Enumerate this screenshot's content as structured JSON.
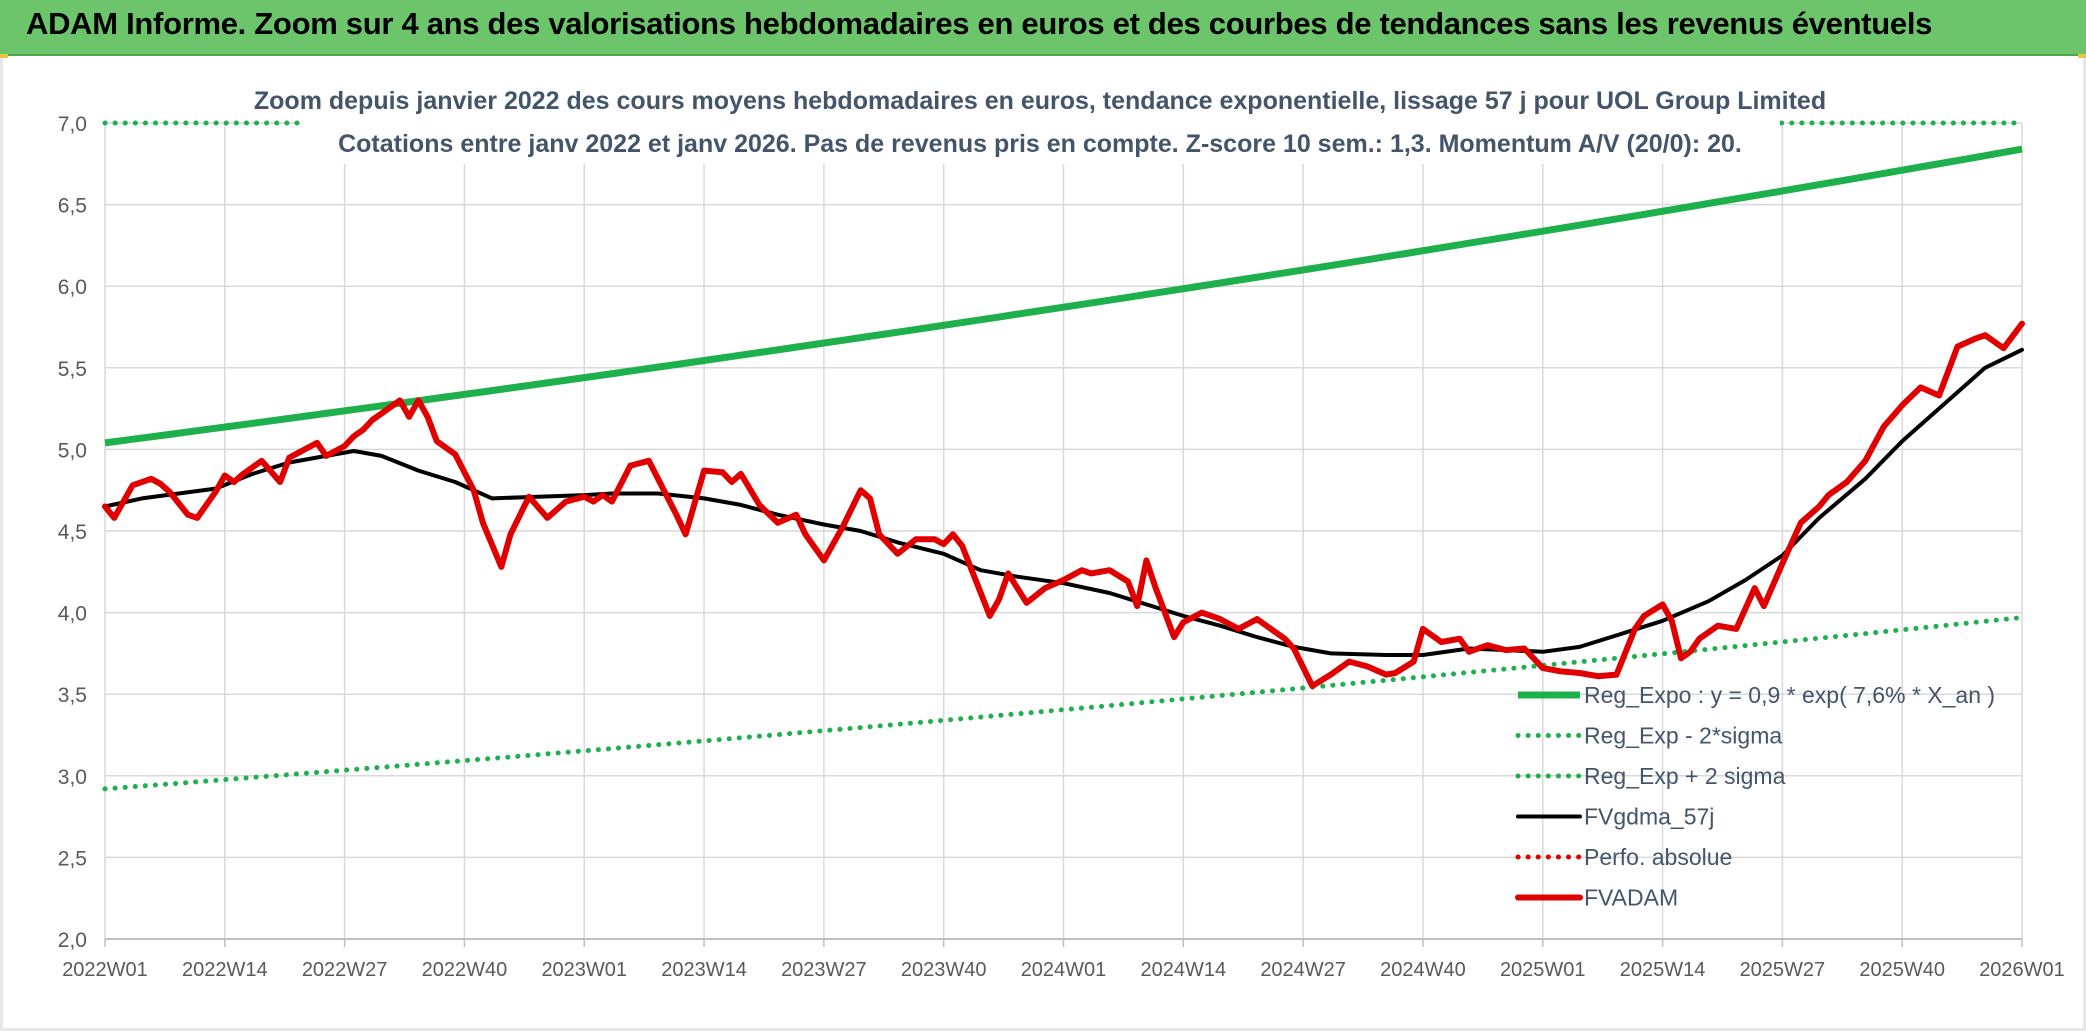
{
  "banner": {
    "title": "ADAM Informe. Zoom sur 4 ans des valorisations hebdomadaires en euros et des courbes de tendances sans les revenus éventuels"
  },
  "chart_data": {
    "type": "line",
    "title": "Zoom depuis janvier 2022 des cours moyens hebdomadaires en euros, tendance exponentielle, lissage 57 j pour UOL Group Limited",
    "subtitle": "Cotations entre janv 2022 et janv 2026. Pas de revenus pris en compte. Z-score 10 sem.: 1,3. Momentum A/V (20/0): 20.",
    "xlabel": "",
    "ylabel": "",
    "x_ticks": [
      "2022W01",
      "2022W14",
      "2022W27",
      "2022W40",
      "2023W01",
      "2023W14",
      "2023W27",
      "2023W40",
      "2024W01",
      "2024W14",
      "2024W27",
      "2024W40",
      "2025W01",
      "2025W14",
      "2025W27",
      "2025W40",
      "2026W01"
    ],
    "y_ticks": [
      "2,0",
      "2,5",
      "3,0",
      "3,5",
      "4,0",
      "4,5",
      "5,0",
      "5,5",
      "6,0",
      "6,5",
      "7,0"
    ],
    "xlim": [
      "2022W01",
      "2026W01"
    ],
    "ylim": [
      2.0,
      7.0
    ],
    "grid": true,
    "legend_position": "bottom-right",
    "legend": [
      {
        "label": "Reg_Expo : y = 0,9 * exp( 7,6% *  X_an )",
        "color": "#1fb04e",
        "style": "solid-thick"
      },
      {
        "label": "Reg_Exp - 2*sigma",
        "color": "#1fb04e",
        "style": "dotted"
      },
      {
        "label": "Reg_Exp + 2 sigma",
        "color": "#1fb04e",
        "style": "dotted"
      },
      {
        "label": "FVgdma_57j",
        "color": "#000000",
        "style": "solid"
      },
      {
        "label": "Perfo. absolue",
        "color": "#e00000",
        "style": "dotted"
      },
      {
        "label": "FVADAM",
        "color": "#e00000",
        "style": "solid-thick"
      }
    ],
    "series": [
      {
        "name": "Reg_Expo : y = 0,9 * exp( 7,6% *  X_an )",
        "color": "#1fb04e",
        "style": "solid-thick",
        "x": [
          "2022W01",
          "2026W01"
        ],
        "values": [
          5.04,
          6.84
        ],
        "curve": "exponential"
      },
      {
        "name": "Reg_Exp - 2*sigma",
        "color": "#1fb04e",
        "style": "dotted",
        "x": [
          "2022W01",
          "2026W01"
        ],
        "values": [
          2.92,
          3.97
        ],
        "curve": "exponential"
      },
      {
        "name": "Reg_Exp + 2 sigma",
        "color": "#1fb04e",
        "style": "dotted",
        "x": [
          "2022W01",
          "2026W01"
        ],
        "values": [
          7.0,
          7.0
        ],
        "curve": "flat"
      },
      {
        "name": "FVgdma_57j",
        "color": "#000000",
        "style": "solid",
        "x": [
          "2022W01",
          "2022W05",
          "2022W09",
          "2022W13",
          "2022W17",
          "2022W21",
          "2022W25",
          "2022W28",
          "2022W31",
          "2022W35",
          "2022W39",
          "2022W43",
          "2022W48",
          "2023W01",
          "2023W04",
          "2023W09",
          "2023W14",
          "2023W18",
          "2023W22",
          "2023W27",
          "2023W31",
          "2023W35",
          "2023W40",
          "2023W44",
          "2023W48",
          "2024W01",
          "2024W06",
          "2024W10",
          "2024W14",
          "2024W18",
          "2024W22",
          "2024W26",
          "2024W30",
          "2024W36",
          "2024W40",
          "2024W45",
          "2024W49",
          "2025W01",
          "2025W05",
          "2025W09",
          "2025W14",
          "2025W19",
          "2025W23",
          "2025W27",
          "2025W31",
          "2025W36",
          "2025W40",
          "2025W45",
          "2025W49",
          "2026W01"
        ],
        "values": [
          4.65,
          4.7,
          4.73,
          4.76,
          4.85,
          4.92,
          4.96,
          4.99,
          4.96,
          4.87,
          4.8,
          4.7,
          4.71,
          4.72,
          4.73,
          4.73,
          4.7,
          4.66,
          4.6,
          4.54,
          4.5,
          4.43,
          4.36,
          4.26,
          4.22,
          4.18,
          4.12,
          4.05,
          3.98,
          3.92,
          3.85,
          3.79,
          3.75,
          3.74,
          3.74,
          3.78,
          3.77,
          3.76,
          3.79,
          3.86,
          3.95,
          4.07,
          4.2,
          4.35,
          4.58,
          4.82,
          5.05,
          5.3,
          5.5,
          5.61
        ]
      },
      {
        "name": "FVADAM",
        "color": "#e00000",
        "style": "solid-thick",
        "x": [
          "2022W01",
          "2022W02",
          "2022W04",
          "2022W06",
          "2022W07",
          "2022W08",
          "2022W10",
          "2022W11",
          "2022W13",
          "2022W14",
          "2022W15",
          "2022W16",
          "2022W18",
          "2022W20",
          "2022W21",
          "2022W22",
          "2022W24",
          "2022W25",
          "2022W27",
          "2022W28",
          "2022W29",
          "2022W30",
          "2022W31",
          "2022W33",
          "2022W34",
          "2022W35",
          "2022W36",
          "2022W37",
          "2022W39",
          "2022W41",
          "2022W42",
          "2022W44",
          "2022W45",
          "2022W47",
          "2022W49",
          "2022W51",
          "2023W01",
          "2023W02",
          "2023W03",
          "2023W04",
          "2023W06",
          "2023W08",
          "2023W09",
          "2023W11",
          "2023W12",
          "2023W14",
          "2023W16",
          "2023W17",
          "2023W18",
          "2023W20",
          "2023W22",
          "2023W24",
          "2023W25",
          "2023W27",
          "2023W29",
          "2023W31",
          "2023W32",
          "2023W33",
          "2023W35",
          "2023W37",
          "2023W39",
          "2023W40",
          "2023W41",
          "2023W42",
          "2023W45",
          "2023W46",
          "2023W47",
          "2023W49",
          "2023W51",
          "2024W01",
          "2024W03",
          "2024W04",
          "2024W06",
          "2024W08",
          "2024W09",
          "2024W10",
          "2024W11",
          "2024W13",
          "2024W14",
          "2024W16",
          "2024W18",
          "2024W20",
          "2024W22",
          "2024W25",
          "2024W26",
          "2024W28",
          "2024W30",
          "2024W32",
          "2024W34",
          "2024W36",
          "2024W37",
          "2024W39",
          "2024W40",
          "2024W42",
          "2024W44",
          "2024W45",
          "2024W47",
          "2024W49",
          "2024W51",
          "2025W01",
          "2025W03",
          "2025W05",
          "2025W07",
          "2025W09",
          "2025W11",
          "2025W12",
          "2025W14",
          "2025W15",
          "2025W16",
          "2025W17",
          "2025W18",
          "2025W20",
          "2025W22",
          "2025W24",
          "2025W25",
          "2025W27",
          "2025W29",
          "2025W31",
          "2025W32",
          "2025W34",
          "2025W36",
          "2025W38",
          "2025W40",
          "2025W42",
          "2025W44",
          "2025W46",
          "2025W48",
          "2025W49",
          "2025W51",
          "2026W01"
        ],
        "values": [
          4.65,
          4.58,
          4.78,
          4.82,
          4.79,
          4.74,
          4.6,
          4.58,
          4.74,
          4.84,
          4.8,
          4.85,
          4.93,
          4.8,
          4.95,
          4.98,
          5.04,
          4.96,
          5.02,
          5.08,
          5.12,
          5.18,
          5.22,
          5.3,
          5.2,
          5.3,
          5.2,
          5.05,
          4.97,
          4.75,
          4.55,
          4.28,
          4.48,
          4.71,
          4.58,
          4.68,
          4.71,
          4.68,
          4.72,
          4.68,
          4.9,
          4.93,
          4.82,
          4.6,
          4.48,
          4.87,
          4.86,
          4.8,
          4.85,
          4.66,
          4.55,
          4.6,
          4.48,
          4.32,
          4.52,
          4.75,
          4.7,
          4.48,
          4.36,
          4.45,
          4.45,
          4.42,
          4.48,
          4.41,
          3.98,
          4.08,
          4.24,
          4.06,
          4.15,
          4.2,
          4.26,
          4.24,
          4.26,
          4.19,
          4.04,
          4.32,
          4.15,
          3.85,
          3.94,
          4.0,
          3.96,
          3.9,
          3.96,
          3.84,
          3.78,
          3.55,
          3.62,
          3.7,
          3.67,
          3.62,
          3.63,
          3.7,
          3.9,
          3.82,
          3.84,
          3.76,
          3.8,
          3.77,
          3.78,
          3.66,
          3.64,
          3.63,
          3.61,
          3.62,
          3.9,
          3.98,
          4.05,
          3.95,
          3.72,
          3.76,
          3.84,
          3.92,
          3.9,
          4.15,
          4.04,
          4.3,
          4.55,
          4.65,
          4.72,
          4.8,
          4.93,
          5.14,
          5.27,
          5.38,
          5.33,
          5.63,
          5.68,
          5.7,
          5.62,
          5.77
        ]
      },
      {
        "name": "Perfo. absolue",
        "color": "#e00000",
        "style": "dotted",
        "x": [],
        "values": []
      }
    ]
  }
}
